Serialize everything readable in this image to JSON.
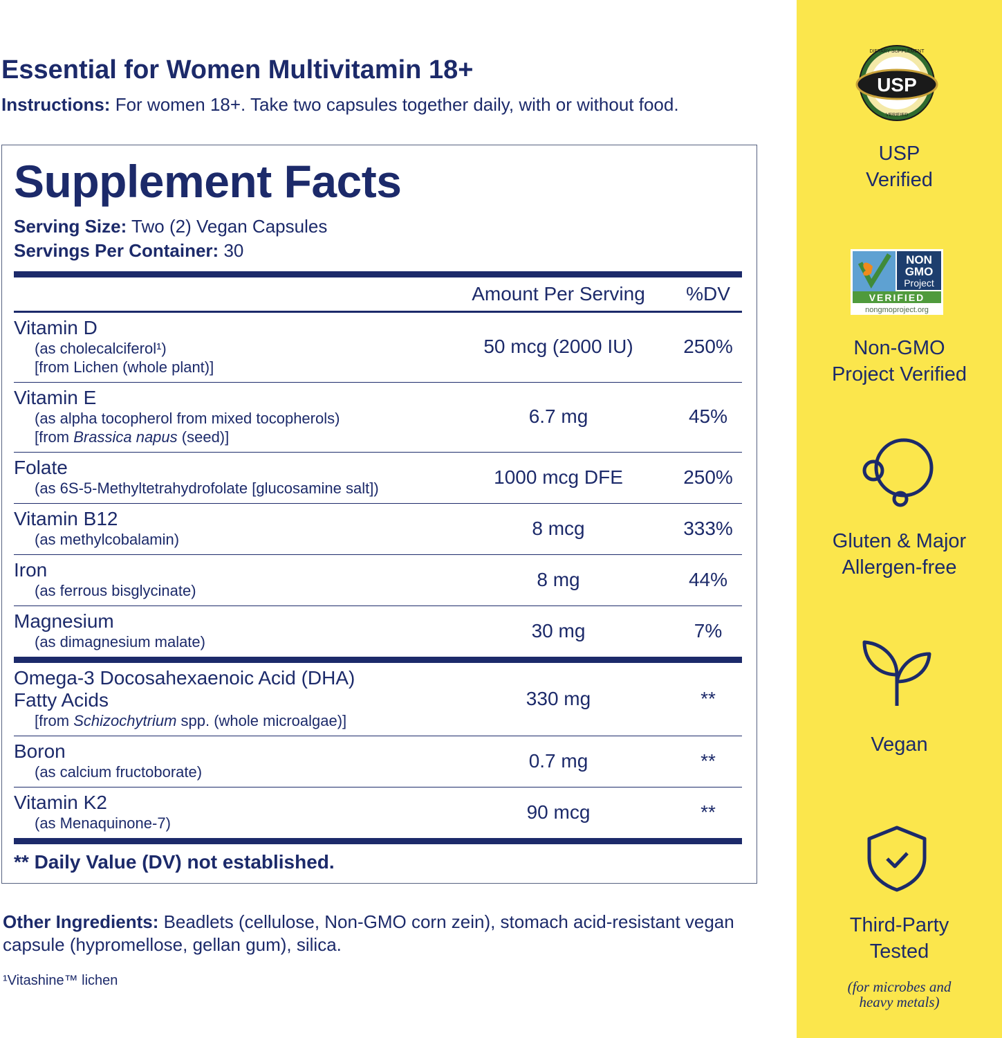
{
  "header": {
    "title": "Essential for Women Multivitamin 18+",
    "instructions_label": "Instructions:",
    "instructions": "For women 18+. Take two capsules together daily, with or without food."
  },
  "facts": {
    "title": "Supplement Facts",
    "serving_size_label": "Serving Size:",
    "serving_size": "Two (2) Vegan Capsules",
    "servings_label": "Servings Per Container:",
    "servings": "30",
    "columns": [
      "Amount Per Serving",
      "%DV"
    ],
    "groups": [
      [
        {
          "name": [
            "Vitamin D"
          ],
          "details": [
            [
              "(as cholecalciferol¹)"
            ],
            [
              "[from Lichen (whole plant)]"
            ]
          ],
          "amount": "50 mcg (2000 IU)",
          "dv": "250%"
        },
        {
          "name": [
            "Vitamin E"
          ],
          "details": [
            [
              "(as alpha tocopherol from mixed tocopherols)"
            ],
            [
              "[from ",
              "Brassica napus",
              " (seed)]"
            ]
          ],
          "amount": "6.7 mg",
          "dv": "45%"
        },
        {
          "name": [
            "Folate"
          ],
          "details": [
            [
              "(as 6S-5-Methyltetrahydrofolate [glucosamine salt])"
            ]
          ],
          "amount": "1000 mcg DFE",
          "dv": "250%"
        },
        {
          "name": [
            "Vitamin B12"
          ],
          "details": [
            [
              "(as methylcobalamin)"
            ]
          ],
          "amount": "8 mcg",
          "dv": "333%"
        },
        {
          "name": [
            "Iron"
          ],
          "details": [
            [
              "(as ferrous bisglycinate)"
            ]
          ],
          "amount": "8 mg",
          "dv": "44%"
        },
        {
          "name": [
            "Magnesium"
          ],
          "details": [
            [
              "(as dimagnesium malate)"
            ]
          ],
          "amount": "30 mg",
          "dv": "7%"
        }
      ],
      [
        {
          "name": [
            "Omega-3 Docosahexaenoic Acid (DHA)",
            "Fatty Acids"
          ],
          "details": [
            [
              "[from ",
              "Schizochytrium",
              " spp. (whole microalgae)]"
            ]
          ],
          "amount": "330 mg",
          "dv": "**"
        },
        {
          "name": [
            "Boron"
          ],
          "details": [
            [
              "(as calcium fructoborate)"
            ]
          ],
          "amount": "0.7 mg",
          "dv": "**"
        },
        {
          "name": [
            "Vitamin K2"
          ],
          "details": [
            [
              "(as Menaquinone-7)"
            ]
          ],
          "amount": "90 mcg",
          "dv": "**"
        }
      ]
    ],
    "footnote": "** Daily Value (DV) not established."
  },
  "other_ingredients": {
    "label": "Other Ingredients:",
    "text": "Beadlets (cellulose, Non-GMO corn zein), stomach acid-resistant vegan capsule (hypromellose, gellan gum), silica."
  },
  "note": "¹Vitashine™ lichen",
  "badges": [
    {
      "logo_text": [
        "DIETARY SUPPLEMENT",
        "USP",
        "VERIFIED"
      ],
      "label": [
        "USP",
        "Verified"
      ]
    },
    {
      "logo_text": [
        "NON",
        "GMO",
        "Project",
        "VERIFIED",
        "nongmoproject.org"
      ],
      "label": [
        "Non-GMO",
        "Project Verified"
      ]
    },
    {
      "label": [
        "Gluten & Major",
        "Allergen-free"
      ]
    },
    {
      "label": [
        "Vegan"
      ]
    },
    {
      "label": [
        "Third-Party",
        "Tested"
      ],
      "note": [
        "(for microbes and",
        "heavy metals)"
      ]
    }
  ]
}
